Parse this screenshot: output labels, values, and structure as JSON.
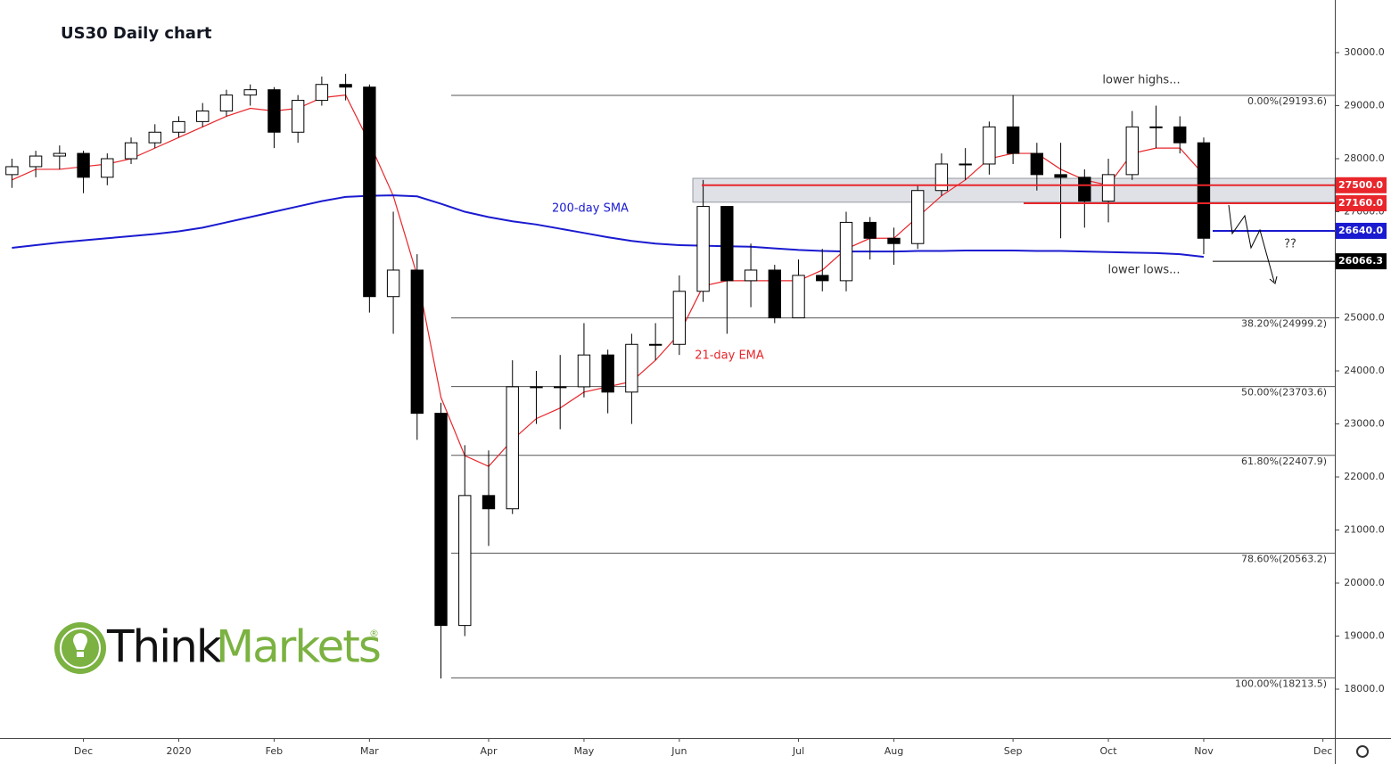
{
  "chart_data": {
    "type": "candlestick",
    "title": "US30 Daily chart",
    "categories": [
      null,
      null,
      null,
      "Dec",
      null,
      null,
      null,
      "2020",
      null,
      null,
      null,
      "Feb",
      null,
      null,
      null,
      "Mar",
      null,
      null,
      null,
      null,
      "Apr",
      null,
      null,
      null,
      "May",
      null,
      null,
      null,
      "Jun",
      null,
      null,
      null,
      null,
      "Jul",
      null,
      null,
      null,
      "Aug",
      null,
      null,
      null,
      null,
      "Sep",
      null,
      null,
      null,
      "Oct",
      null,
      null,
      null,
      "Nov",
      null,
      null,
      null,
      null,
      "Dec"
    ],
    "open": [
      27700,
      27850,
      28050,
      28100,
      27650,
      28000,
      28300,
      28500,
      28700,
      28900,
      29200,
      29300,
      28500,
      29100,
      29400,
      29350,
      25400,
      25900,
      23200,
      19200,
      21650,
      21400,
      23700,
      23700,
      23700,
      24300,
      23600,
      24500,
      24500,
      25500,
      27100,
      25700,
      25900,
      25000,
      25800,
      25700,
      26800,
      26500,
      26400,
      27400,
      27900,
      27900,
      28600,
      28100,
      27700,
      27650,
      27200,
      27700,
      28600,
      28600,
      28300,
      null,
      null,
      null,
      null,
      null
    ],
    "high": [
      28000,
      28150,
      28250,
      28150,
      28100,
      28400,
      28650,
      28800,
      29050,
      29300,
      29400,
      29350,
      29200,
      29550,
      29600,
      29400,
      27000,
      26200,
      23400,
      22600,
      22500,
      24200,
      24000,
      24300,
      24900,
      24400,
      24700,
      24900,
      25800,
      27600,
      27000,
      26400,
      26000,
      26100,
      26300,
      27000,
      26900,
      26700,
      27500,
      28100,
      28200,
      28700,
      29200,
      28300,
      28300,
      27800,
      28000,
      28900,
      29000,
      28800,
      28400,
      null,
      null,
      null,
      null,
      null
    ],
    "low": [
      27450,
      27650,
      27800,
      27350,
      27500,
      27900,
      28200,
      28400,
      28600,
      28800,
      29000,
      28200,
      28300,
      29000,
      29100,
      25100,
      24700,
      22700,
      18200,
      19000,
      20700,
      21300,
      23000,
      22900,
      23500,
      23200,
      23000,
      24200,
      24300,
      25300,
      24700,
      25200,
      24900,
      25000,
      25500,
      25500,
      26100,
      26000,
      26300,
      27300,
      27600,
      27700,
      27900,
      27400,
      26500,
      26700,
      26800,
      27600,
      28200,
      28100,
      26200,
      null,
      null,
      null,
      null,
      null
    ],
    "close": [
      27850,
      28050,
      28100,
      27650,
      28000,
      28300,
      28500,
      28700,
      28900,
      29200,
      29300,
      28500,
      29100,
      29400,
      29350,
      25400,
      25900,
      23200,
      19200,
      21650,
      21400,
      23700,
      23700,
      23700,
      24300,
      23600,
      24500,
      24500,
      25500,
      27100,
      25700,
      25900,
      25000,
      25800,
      25700,
      26800,
      26500,
      26400,
      27400,
      27900,
      27900,
      28600,
      28100,
      27700,
      27650,
      27200,
      27700,
      28600,
      28600,
      28300,
      26500,
      null,
      null,
      null,
      null,
      null
    ],
    "series": [
      {
        "name": "21-day EMA",
        "color": "#e8262b",
        "values": [
          27600,
          27800,
          27800,
          27850,
          27900,
          28000,
          28200,
          28400,
          28600,
          28800,
          28950,
          28900,
          28950,
          29150,
          29200,
          28300,
          27300,
          25800,
          23500,
          22400,
          22200,
          22700,
          23100,
          23300,
          23600,
          23700,
          23800,
          24200,
          24700,
          25600,
          25700,
          25700,
          25700,
          25700,
          25900,
          26300,
          26500,
          26500,
          26900,
          27300,
          27600,
          28000,
          28100,
          28100,
          27800,
          27600,
          27500,
          28100,
          28200,
          28200,
          27700,
          null,
          null,
          null,
          null,
          null
        ]
      },
      {
        "name": "200-day SMA",
        "color": "#1a1ad0",
        "values": [
          26320,
          26370,
          26420,
          26460,
          26500,
          26540,
          26580,
          26630,
          26700,
          26800,
          26900,
          27000,
          27100,
          27200,
          27280,
          27300,
          27310,
          27290,
          27150,
          27000,
          26900,
          26820,
          26760,
          26680,
          26600,
          26520,
          26450,
          26400,
          26370,
          26360,
          26350,
          26340,
          26310,
          26280,
          26260,
          26250,
          26250,
          26250,
          26260,
          26260,
          26270,
          26270,
          26270,
          26260,
          26260,
          26250,
          26240,
          26230,
          26220,
          26200,
          26150,
          null,
          null,
          null,
          null,
          null
        ]
      }
    ],
    "ylim": [
      17076,
      30992
    ],
    "yticks": [
      {
        "value": 18000,
        "label": "18000.0"
      },
      {
        "value": 19000,
        "label": "19000.0"
      },
      {
        "value": 20000,
        "label": "20000.0"
      },
      {
        "value": 21000,
        "label": "21000.0"
      },
      {
        "value": 22000,
        "label": "22000.0"
      },
      {
        "value": 23000,
        "label": "23000.0"
      },
      {
        "value": 24000,
        "label": "24000.0"
      },
      {
        "value": 25000,
        "label": "25000.0"
      },
      {
        "value": 26000,
        "label": "26000.0"
      },
      {
        "value": 27000,
        "label": "27000.0"
      },
      {
        "value": 28000,
        "label": "28000.0"
      },
      {
        "value": 29000,
        "label": "29000.0"
      },
      {
        "value": 30000,
        "label": "30000.0"
      }
    ],
    "fib_levels": [
      {
        "value": 29193.6,
        "label": "0.00%(29193.6)"
      },
      {
        "value": 24999.2,
        "label": "38.20%(24999.2)"
      },
      {
        "value": 23703.6,
        "label": "50.00%(23703.6)"
      },
      {
        "value": 22407.9,
        "label": "61.80%(22407.9)"
      },
      {
        "value": 20563.2,
        "label": "78.60%(20563.2)"
      },
      {
        "value": 18213.5,
        "label": "100.00%(18213.5)"
      }
    ],
    "levels": [
      {
        "value": 27500,
        "label": "27500.0",
        "color": "#e8262b"
      },
      {
        "value": 27160,
        "label": "27160.0",
        "color": "#e8262b"
      },
      {
        "value": 26640,
        "label": "26640.0",
        "color": "#1a1ad0"
      },
      {
        "value": 26066.3,
        "label": "26066.3",
        "color": "#000000"
      }
    ],
    "zone": [
      27180,
      27630
    ],
    "annotations": [
      "lower highs...",
      "lower lows...",
      "??"
    ],
    "logo": {
      "think": "Think",
      "markets": "Markets",
      "mark": "®"
    }
  }
}
